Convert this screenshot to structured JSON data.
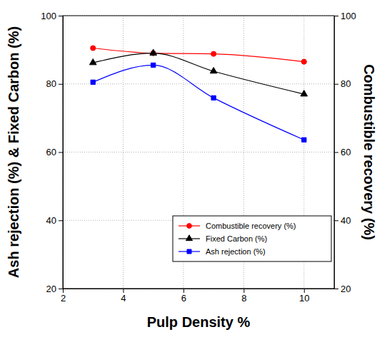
{
  "chart_data": {
    "type": "line",
    "x_label": "Pulp Density %",
    "y_label": "Ash rejection (%) & Fixed Carbon (%)",
    "y2_label": "Combustible recovery (%)",
    "x": [
      3,
      5,
      7,
      10
    ],
    "xlim": [
      2,
      11
    ],
    "xticks": [
      2,
      4,
      6,
      8,
      10
    ],
    "ylim": [
      20,
      100
    ],
    "yticks": [
      20,
      40,
      60,
      80,
      100
    ],
    "y2lim": [
      20,
      100
    ],
    "y2ticks": [
      20,
      40,
      60,
      80,
      100
    ],
    "grid": true,
    "legend": "lower right",
    "series": [
      {
        "name": "Combustible recovery (%)",
        "color": "#ff0000",
        "marker": "circle",
        "axis": "y2",
        "values": [
          90.5,
          89.0,
          88.8,
          86.5
        ]
      },
      {
        "name": "Fixed Carbon (%)",
        "color": "#000000",
        "marker": "triangle",
        "values": [
          86.2,
          89.0,
          83.7,
          77.0
        ]
      },
      {
        "name": "Ash rejection (%)",
        "color": "#0000ff",
        "marker": "square",
        "values": [
          80.5,
          85.5,
          75.9,
          63.6
        ]
      }
    ]
  }
}
